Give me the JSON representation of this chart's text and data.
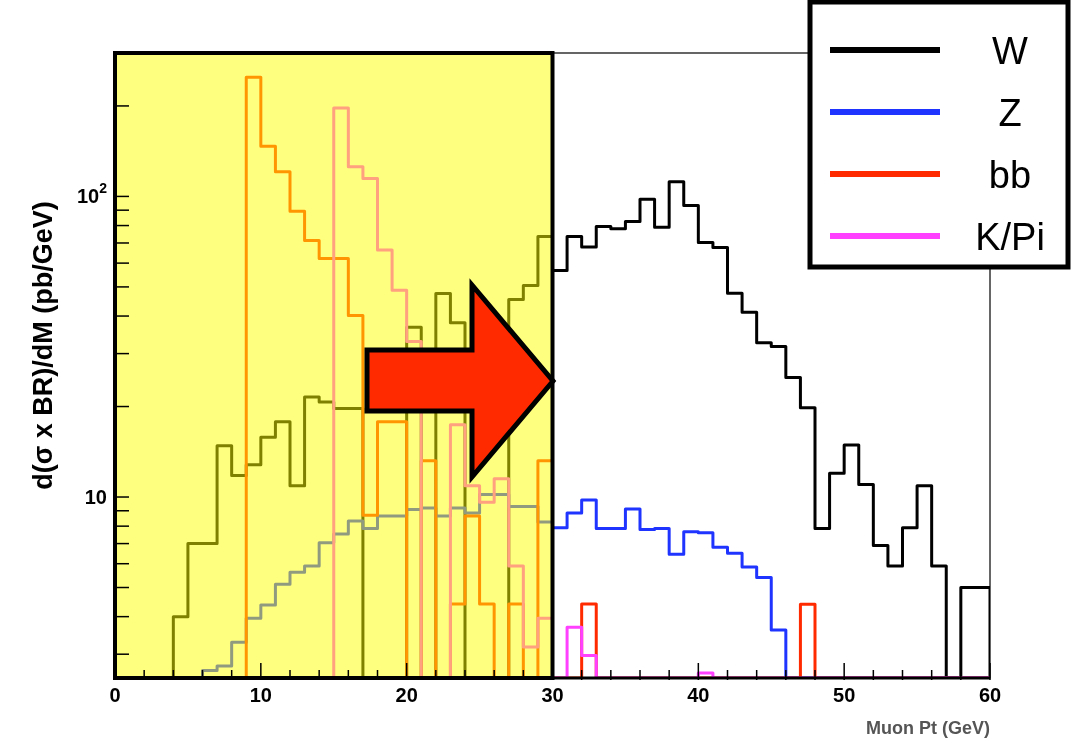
{
  "chart_data": {
    "type": "histogram",
    "xlabel": "Muon Pt (GeV)",
    "ylabel": "d(σ x BR)/dM (pb/GeV)",
    "bins": [
      0,
      1,
      2,
      3,
      4,
      5,
      6,
      7,
      8,
      9,
      10,
      11,
      12,
      13,
      14,
      15,
      16,
      17,
      18,
      19,
      20,
      21,
      22,
      23,
      24,
      25,
      26,
      27,
      28,
      29,
      30,
      31,
      32,
      33,
      34,
      35,
      36,
      37,
      38,
      39,
      40,
      41,
      42,
      43,
      44,
      45,
      46,
      47,
      48,
      49,
      50,
      51,
      52,
      53,
      54,
      55,
      56,
      57,
      58,
      59,
      60
    ],
    "series": [
      {
        "name": "W",
        "color": "#000000",
        "values": [
          null,
          null,
          null,
          null,
          4,
          7,
          7,
          14.8,
          11.8,
          12.8,
          15.8,
          17.8,
          10.9,
          21.5,
          20.7,
          19.7,
          19.7,
          null,
          null,
          null,
          36.7,
          null,
          47.5,
          38,
          null,
          null,
          null,
          45.4,
          50.5,
          73.6,
          56.7,
          73.6,
          67.9,
          79.4,
          78,
          82.6,
          97.8,
          79,
          112,
          93.3,
          70.3,
          67.6,
          47.6,
          41.2,
          32.6,
          31.7,
          25,
          19.8,
          7.85,
          12,
          14.9,
          11,
          6.9,
          5.9,
          7.9,
          10.9,
          5.9,
          null,
          5,
          5
        ]
      },
      {
        "name": "Z",
        "color": "#1f35ff",
        "values": [
          null,
          null,
          null,
          null,
          null,
          null,
          2.65,
          2.74,
          3.29,
          3.95,
          4.37,
          5.13,
          5.62,
          5.9,
          7.05,
          7.53,
          8.33,
          7.85,
          8.65,
          8.65,
          9.08,
          9.2,
          8.65,
          9.2,
          8.85,
          10.2,
          10.2,
          9.3,
          9.3,
          8.26,
          7.9,
          8.85,
          9.78,
          7.85,
          7.85,
          9.13,
          7.8,
          7.85,
          6.45,
          7.67,
          7.6,
          6.8,
          6.5,
          5.85,
          5.4,
          3.61,
          null,
          null,
          null,
          null,
          null,
          null,
          null,
          null,
          null,
          null,
          null,
          null,
          null,
          null
        ]
      },
      {
        "name": "bb",
        "color": "#ff2a00",
        "values": [
          null,
          null,
          null,
          null,
          null,
          null,
          null,
          null,
          null,
          249,
          147,
          120.7,
          89.3,
          71.3,
          62.2,
          62.2,
          40.2,
          8.7,
          17.8,
          17.8,
          null,
          13.2,
          null,
          4.41,
          8.65,
          4.41,
          null,
          4.41,
          null,
          13.2,
          null,
          null,
          4.41,
          null,
          null,
          null,
          null,
          null,
          null,
          null,
          null,
          null,
          null,
          null,
          null,
          null,
          null,
          4.4,
          null,
          null,
          null,
          null,
          null,
          null,
          null,
          null,
          null,
          null,
          null,
          null
        ]
      },
      {
        "name": "K/Pi",
        "color": "#ff40ff",
        "values": [
          null,
          null,
          null,
          null,
          null,
          null,
          null,
          null,
          null,
          null,
          null,
          null,
          null,
          null,
          null,
          197,
          125.6,
          114.8,
          66.4,
          48.7,
          32.9,
          null,
          null,
          17.4,
          10.9,
          9.6,
          11.5,
          5.9,
          3.17,
          3.95,
          null,
          3.69,
          2.97,
          null,
          null,
          null,
          null,
          null,
          null,
          null,
          2.6,
          null,
          null,
          null,
          null,
          null,
          null,
          null,
          null,
          null,
          null,
          null,
          null,
          null,
          null,
          null,
          null,
          null,
          null,
          null
        ]
      }
    ],
    "log": "y",
    "xlim": [
      0,
      60
    ],
    "ylim": [
      2.5,
      300
    ],
    "xticks": [
      0,
      {
        "value": 2,
        "label": null
      },
      {
        "value": 4,
        "label": null
      },
      {
        "value": 6,
        "label": null
      },
      {
        "value": 8,
        "label": null
      },
      10,
      {
        "value": 12,
        "label": null
      },
      {
        "value": 14,
        "label": null
      },
      {
        "value": 16,
        "label": null
      },
      {
        "value": 18,
        "label": null
      },
      20,
      {
        "value": 22,
        "label": null
      },
      {
        "value": 24,
        "label": null
      },
      {
        "value": 26,
        "label": null
      },
      {
        "value": 28,
        "label": null
      },
      30,
      {
        "value": 32,
        "label": null
      },
      {
        "value": 34,
        "label": null
      },
      {
        "value": 36,
        "label": null
      },
      {
        "value": 38,
        "label": null
      },
      40,
      {
        "value": 42,
        "label": null
      },
      {
        "value": 44,
        "label": null
      },
      {
        "value": 46,
        "label": null
      },
      {
        "value": 48,
        "label": null
      },
      50,
      {
        "value": 52,
        "label": null
      },
      {
        "value": 54,
        "label": null
      },
      {
        "value": 56,
        "label": null
      },
      {
        "value": 58,
        "label": null
      },
      60
    ],
    "yticks": [
      {
        "value": 3,
        "label": null
      },
      {
        "value": 4,
        "label": null
      },
      {
        "value": 5,
        "label": null
      },
      {
        "value": 6,
        "label": null
      },
      {
        "value": 7,
        "label": null
      },
      {
        "value": 8,
        "label": null
      },
      {
        "value": 9,
        "label": null
      },
      10,
      {
        "value": 20,
        "label": null
      },
      {
        "value": 30,
        "label": null
      },
      {
        "value": 40,
        "label": null
      },
      {
        "value": 50,
        "label": null
      },
      {
        "value": 60,
        "label": null
      },
      {
        "value": 70,
        "label": null
      },
      {
        "value": 80,
        "label": null
      },
      {
        "value": 90,
        "label": null
      },
      {
        "value": 100,
        "label": "10$^{2}$"
      },
      {
        "value": 200,
        "label": null
      },
      {
        "value": 300,
        "label": null
      }
    ],
    "bands": [
      {
        "axis": "x",
        "from": 0,
        "to": 30,
        "color": "#ffff00"
      }
    ],
    "legend": "top right"
  }
}
